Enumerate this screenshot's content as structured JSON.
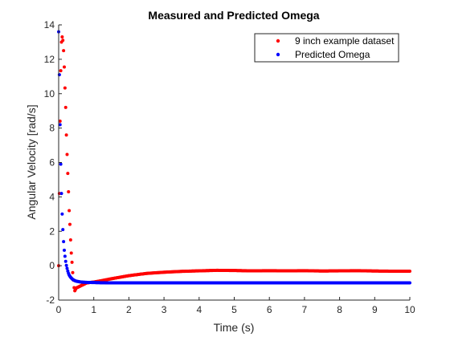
{
  "chart_data": {
    "type": "scatter",
    "title": "Measured and Predicted Omega",
    "xlabel": "Time (s)",
    "ylabel": "Angular Velocity [rad/s]",
    "xlim": [
      0,
      10
    ],
    "ylim": [
      -2,
      14
    ],
    "xticks": [
      "0",
      "1",
      "2",
      "3",
      "4",
      "5",
      "6",
      "7",
      "8",
      "9",
      "10"
    ],
    "yticks": [
      "-2",
      "0",
      "2",
      "4",
      "6",
      "8",
      "10",
      "12",
      "14"
    ],
    "grid": false,
    "legend_position": "top-right",
    "series": [
      {
        "name": "9 inch example dataset",
        "color": "#ff0000",
        "x": [
          0.0,
          0.05,
          0.08,
          0.1,
          0.12,
          0.15,
          0.17,
          0.2,
          0.22,
          0.25,
          0.28,
          0.3,
          0.33,
          0.35,
          0.38,
          0.4,
          0.45,
          0.5,
          0.6,
          0.7,
          0.8,
          1.0,
          1.2,
          1.5,
          2.0,
          2.5,
          3.0,
          3.5,
          4.0,
          4.5,
          5.0,
          5.5,
          6.0,
          6.5,
          7.0,
          7.5,
          8.0,
          8.5,
          9.0,
          9.5,
          10.0
        ],
        "y": [
          0.0,
          10.5,
          13.0,
          13.3,
          13.1,
          12.2,
          10.9,
          9.2,
          7.6,
          5.9,
          4.3,
          3.2,
          2.0,
          1.0,
          0.2,
          -0.4,
          -1.5,
          -1.3,
          -1.2,
          -1.1,
          -1.0,
          -0.95,
          -0.88,
          -0.76,
          -0.58,
          -0.45,
          -0.38,
          -0.33,
          -0.3,
          -0.27,
          -0.28,
          -0.3,
          -0.29,
          -0.3,
          -0.29,
          -0.31,
          -0.3,
          -0.29,
          -0.31,
          -0.32,
          -0.32
        ]
      },
      {
        "name": "Predicted Omega",
        "color": "#0000ff",
        "x": [
          0.0,
          0.02,
          0.04,
          0.06,
          0.08,
          0.1,
          0.12,
          0.14,
          0.16,
          0.18,
          0.2,
          0.22,
          0.25,
          0.28,
          0.3,
          0.35,
          0.4,
          0.45,
          0.5,
          0.6,
          0.7,
          0.8,
          1.0,
          1.2,
          1.5,
          2.0,
          2.5,
          3.0,
          4.0,
          5.0,
          6.0,
          7.0,
          8.0,
          9.0,
          10.0
        ],
        "y": [
          13.6,
          11.1,
          8.2,
          5.9,
          4.2,
          3.0,
          2.1,
          1.4,
          0.9,
          0.55,
          0.25,
          0.02,
          -0.25,
          -0.45,
          -0.55,
          -0.7,
          -0.8,
          -0.86,
          -0.9,
          -0.94,
          -0.96,
          -0.97,
          -0.98,
          -0.99,
          -1.0,
          -1.0,
          -1.0,
          -1.0,
          -1.0,
          -1.0,
          -1.0,
          -1.0,
          -1.0,
          -1.0,
          -1.0
        ]
      }
    ]
  }
}
